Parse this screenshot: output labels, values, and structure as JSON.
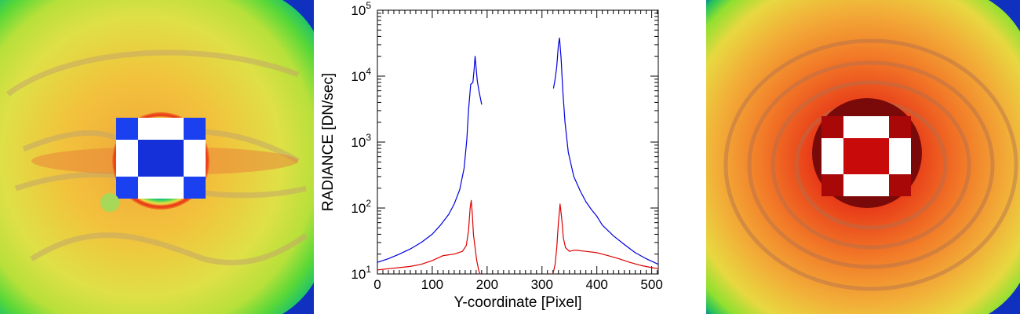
{
  "chart_data": {
    "type": "line",
    "title": "",
    "xlabel": "Y-coordinate [Pixel]",
    "ylabel": "RADIANCE [DN/sec]",
    "xlim": [
      0,
      512
    ],
    "ylim": [
      10,
      100000
    ],
    "yscale": "log",
    "x_ticks": [
      {
        "value": 0,
        "label": "0"
      },
      {
        "value": 100,
        "label": "100"
      },
      {
        "value": 200,
        "label": "200"
      },
      {
        "value": 300,
        "label": "300"
      },
      {
        "value": 400,
        "label": "400"
      },
      {
        "value": 500,
        "label": "500"
      }
    ],
    "y_ticks": [
      {
        "value": 10,
        "base": "10",
        "exp": "1"
      },
      {
        "value": 100,
        "base": "10",
        "exp": "2"
      },
      {
        "value": 1000,
        "base": "10",
        "exp": "3"
      },
      {
        "value": 10000,
        "base": "10",
        "exp": "4"
      },
      {
        "value": 100000,
        "base": "10",
        "exp": "5"
      }
    ],
    "series": [
      {
        "name": "blue",
        "color": "#0000dd",
        "segments": [
          {
            "x": [
              0,
              20,
              40,
              60,
              80,
              100,
              115,
              130,
              140,
              150,
              158,
              163,
              166,
              170,
              174,
              176,
              178,
              180,
              182,
              185,
              188,
              190
            ],
            "y": [
              15,
              17,
              20,
              24,
              30,
              40,
              55,
              80,
              115,
              190,
              400,
              1100,
              3000,
              7500,
              8000,
              12000,
              20000,
              13000,
              8500,
              6000,
              4500,
              3700
            ]
          },
          {
            "x": [
              321,
              324,
              327,
              330,
              332,
              335,
              338,
              342,
              348,
              358,
              370,
              380,
              390,
              400,
              410,
              430,
              450,
              470,
              490,
              512
            ],
            "y": [
              6500,
              9000,
              14000,
              30000,
              38000,
              18000,
              6000,
              2000,
              700,
              300,
              180,
              125,
              95,
              75,
              55,
              38,
              28,
              21,
              17,
              14
            ]
          }
        ]
      },
      {
        "name": "red",
        "color": "#dd0000",
        "segments": [
          {
            "x": [
              0,
              20,
              40,
              60,
              80,
              100,
              120,
              140,
              155,
              162,
              166,
              169,
              171,
              173,
              175,
              178,
              181,
              185,
              187
            ],
            "y": [
              11.5,
              12,
              12.5,
              13,
              14,
              16,
              19,
              20,
              22,
              27,
              45,
              100,
              130,
              80,
              40,
              25,
              16,
              11,
              10
            ]
          },
          {
            "x": [
              320,
              324,
              327,
              330,
              333,
              336,
              339,
              343,
              350,
              360,
              380,
              400,
              420,
              440,
              460,
              480,
              500,
              512
            ],
            "y": [
              10,
              14,
              25,
              60,
              115,
              70,
              35,
              25,
              22,
              23,
              22,
              21,
              19,
              17,
              15,
              13.5,
              12.5,
              12
            ]
          }
        ]
      }
    ]
  },
  "left_image": {
    "name": "blue-core scatter map"
  },
  "right_image": {
    "name": "red-core scatter map"
  }
}
